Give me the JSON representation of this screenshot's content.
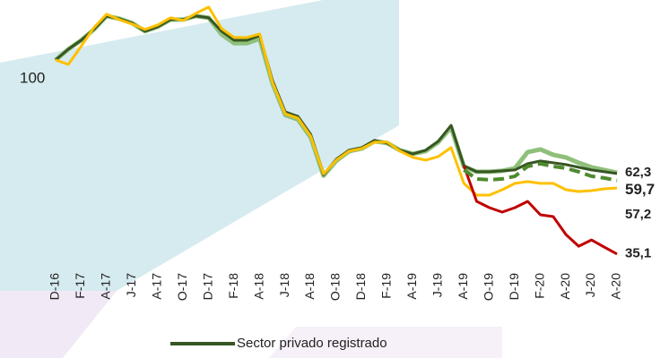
{
  "chart_data": {
    "type": "line",
    "base_label": "100",
    "categories": [
      "D-16",
      null,
      "F-17",
      null,
      "A-17",
      null,
      "J-17",
      null,
      "A-17",
      null,
      "O-17",
      null,
      "D-17",
      null,
      "F-18",
      null,
      "A-18",
      null,
      "J-18",
      null,
      "A-18",
      null,
      "O-18",
      null,
      "D-18",
      null,
      "F-19",
      null,
      "A-19",
      null,
      "J-19",
      null,
      "A-19",
      null,
      "O-19",
      null,
      "D-19",
      null,
      "F-20",
      null,
      "A-20",
      null,
      "J-20",
      null,
      "A-20"
    ],
    "ylim": [
      30,
      120
    ],
    "legend": "bottom",
    "series": [
      {
        "color": "#8fc07a",
        "width": 5,
        "value_label": "62,3",
        "values": [
          100,
          103.6,
          106.6,
          110.2,
          114.7,
          113.8,
          112.3,
          109.6,
          111.1,
          113.5,
          113.5,
          114.7,
          114.1,
          108.6,
          105.6,
          105.6,
          107.1,
          92.1,
          81.6,
          80.1,
          74.1,
          61.3,
          66.3,
          69.5,
          70.4,
          72.8,
          72.2,
          69.8,
          68.6,
          69.5,
          72.5,
          77.5,
          64.3,
          62.6,
          62.6,
          62.9,
          63.8,
          69.2,
          70.1,
          68.3,
          67.4,
          65.6,
          64.1,
          63.2,
          62.3
        ]
      },
      {
        "name": "Sector privado registrado",
        "color": "#375623",
        "width": 3,
        "values": [
          100,
          103.6,
          106.6,
          110.2,
          114.7,
          113.8,
          112.3,
          109.6,
          111.1,
          113.5,
          113.5,
          114.7,
          114.1,
          109.6,
          106.6,
          106.6,
          108.1,
          93.1,
          82.6,
          81.1,
          75.1,
          61.6,
          66.8,
          69.8,
          70.7,
          73.1,
          72.2,
          69.8,
          68.6,
          69.8,
          72.8,
          78.1,
          64.6,
          62.6,
          62.6,
          62.9,
          63.2,
          65.3,
          66.2,
          65.6,
          65.0,
          64.1,
          63.2,
          62.6,
          62.0
        ]
      },
      {
        "color": "#ffc000",
        "width": 3,
        "value_label": "57,2",
        "values": [
          100,
          98.5,
          104.6,
          110.8,
          115.3,
          113.5,
          112.0,
          110.2,
          111.7,
          114.1,
          113.2,
          115.6,
          117.7,
          110.5,
          107.5,
          107.5,
          108.7,
          92.5,
          82.0,
          80.5,
          74.5,
          61.9,
          66.5,
          69.5,
          70.4,
          72.5,
          72.5,
          69.5,
          67.4,
          66.5,
          67.7,
          70.7,
          58.7,
          54.8,
          54.8,
          56.6,
          58.7,
          59.3,
          58.7,
          58.7,
          56.6,
          56.0,
          56.3,
          56.9,
          57.2
        ]
      },
      {
        "color": "#c00000",
        "width": 3,
        "value_label": "35,1",
        "values": [
          null,
          null,
          null,
          null,
          null,
          null,
          null,
          null,
          null,
          null,
          null,
          null,
          null,
          null,
          null,
          null,
          null,
          null,
          null,
          null,
          null,
          null,
          null,
          null,
          null,
          null,
          null,
          null,
          null,
          null,
          null,
          null,
          64.6,
          52.7,
          50.6,
          49.1,
          50.6,
          52.7,
          48.2,
          47.6,
          41.6,
          37.7,
          39.8,
          37.4,
          35.1
        ]
      },
      {
        "color": "#4e8a2e",
        "width": 4,
        "dashed": true,
        "value_label": "59,7",
        "values": [
          null,
          null,
          null,
          null,
          null,
          null,
          null,
          null,
          null,
          null,
          null,
          null,
          null,
          null,
          null,
          null,
          null,
          null,
          null,
          null,
          null,
          null,
          null,
          null,
          null,
          null,
          null,
          null,
          null,
          null,
          null,
          null,
          63.2,
          60.2,
          59.9,
          60.2,
          61.1,
          64.4,
          65.3,
          64.4,
          63.8,
          62.6,
          61.1,
          60.5,
          59.7
        ]
      }
    ]
  }
}
